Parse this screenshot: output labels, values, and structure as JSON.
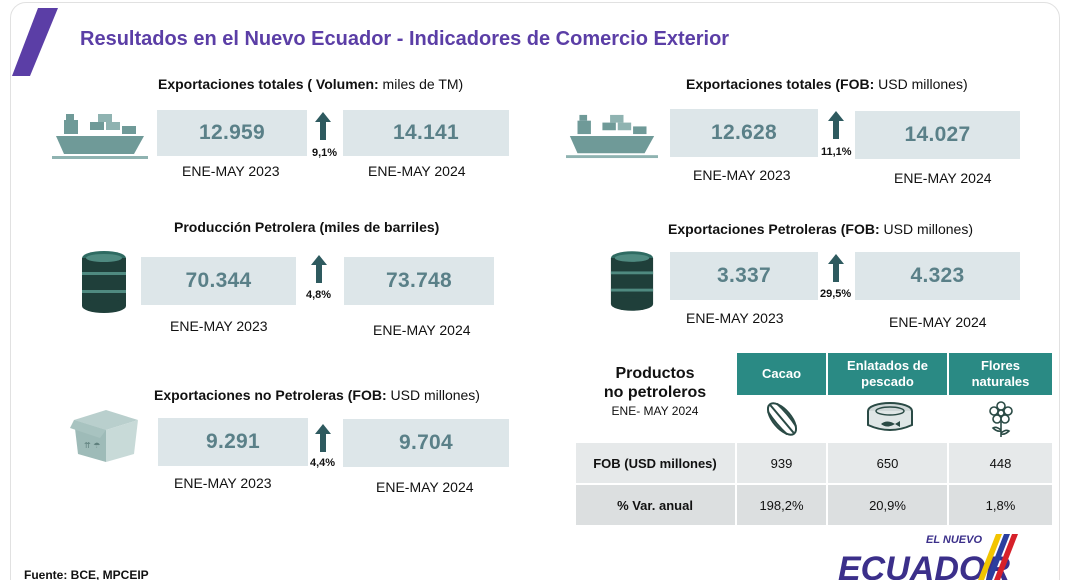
{
  "header": {
    "title": "Resultados en el Nuevo Ecuador - Indicadores de Comercio Exterior"
  },
  "panels": {
    "export_volume": {
      "title_bold": "Exportaciones totales ( Volumen:",
      "title_normal": " miles de TM)",
      "icon": "cargo-ship-icon",
      "value_2023": "12.959",
      "value_2024": "14.141",
      "period_2023": "ENE-MAY 2023",
      "period_2024": "ENE-MAY 2024",
      "change": "9,1%"
    },
    "export_fob": {
      "title_bold": "Exportaciones totales (FOB:",
      "title_normal": " USD millones)",
      "icon": "cargo-ship-icon",
      "value_2023": "12.628",
      "value_2024": "14.027",
      "period_2023": "ENE-MAY 2023",
      "period_2024": "ENE-MAY 2024",
      "change": "11,1%"
    },
    "oil_production": {
      "title_bold": "Producción Petrolera (miles de barriles)",
      "title_normal": "",
      "icon": "oil-barrel-icon",
      "value_2023": "70.344",
      "value_2024": "73.748",
      "period_2023": "ENE-MAY 2023",
      "period_2024": "ENE-MAY 2024",
      "change": "4,8%"
    },
    "oil_exports": {
      "title_bold": "Exportaciones Petroleras (FOB:",
      "title_normal": " USD millones)",
      "icon": "oil-barrel-icon",
      "value_2023": "3.337",
      "value_2024": "4.323",
      "period_2023": "ENE-MAY 2023",
      "period_2024": "ENE-MAY 2024",
      "change": "29,5%"
    },
    "non_oil_exports": {
      "title_bold": "Exportaciones no Petroleras (FOB:",
      "title_normal": " USD millones)",
      "icon": "cardboard-box-icon",
      "value_2023": "9.291",
      "value_2024": "9.704",
      "period_2023": "ENE-MAY 2023",
      "period_2024": "ENE-MAY 2024",
      "change": "4,4%"
    }
  },
  "products": {
    "title_line1": "Productos",
    "title_line2": "no petroleros",
    "subtitle": "ENE- MAY 2024",
    "columns": [
      {
        "label": "Cacao",
        "icon": "cacao-pod-icon"
      },
      {
        "label": "Enlatados de pescado",
        "icon": "fish-can-icon"
      },
      {
        "label": "Flores naturales",
        "icon": "flower-icon"
      }
    ],
    "rows": [
      {
        "label": "FOB (USD millones)",
        "values": [
          "939",
          "650",
          "448"
        ]
      },
      {
        "label": "% Var. anual",
        "values": [
          "198,2%",
          "20,9%",
          "1,8%"
        ]
      }
    ]
  },
  "footer": {
    "source": "Fuente: BCE, MPCEIP",
    "logo_top": "EL NUEVO",
    "logo_main": "ECUADOR"
  },
  "colors": {
    "title": "#5b3ea6",
    "value_box": "#dde6e9",
    "value_text": "#5a8088",
    "table_header": "#2a8a84",
    "arrow": "#2e5a5f",
    "icon_teal": "#6f9a98"
  }
}
